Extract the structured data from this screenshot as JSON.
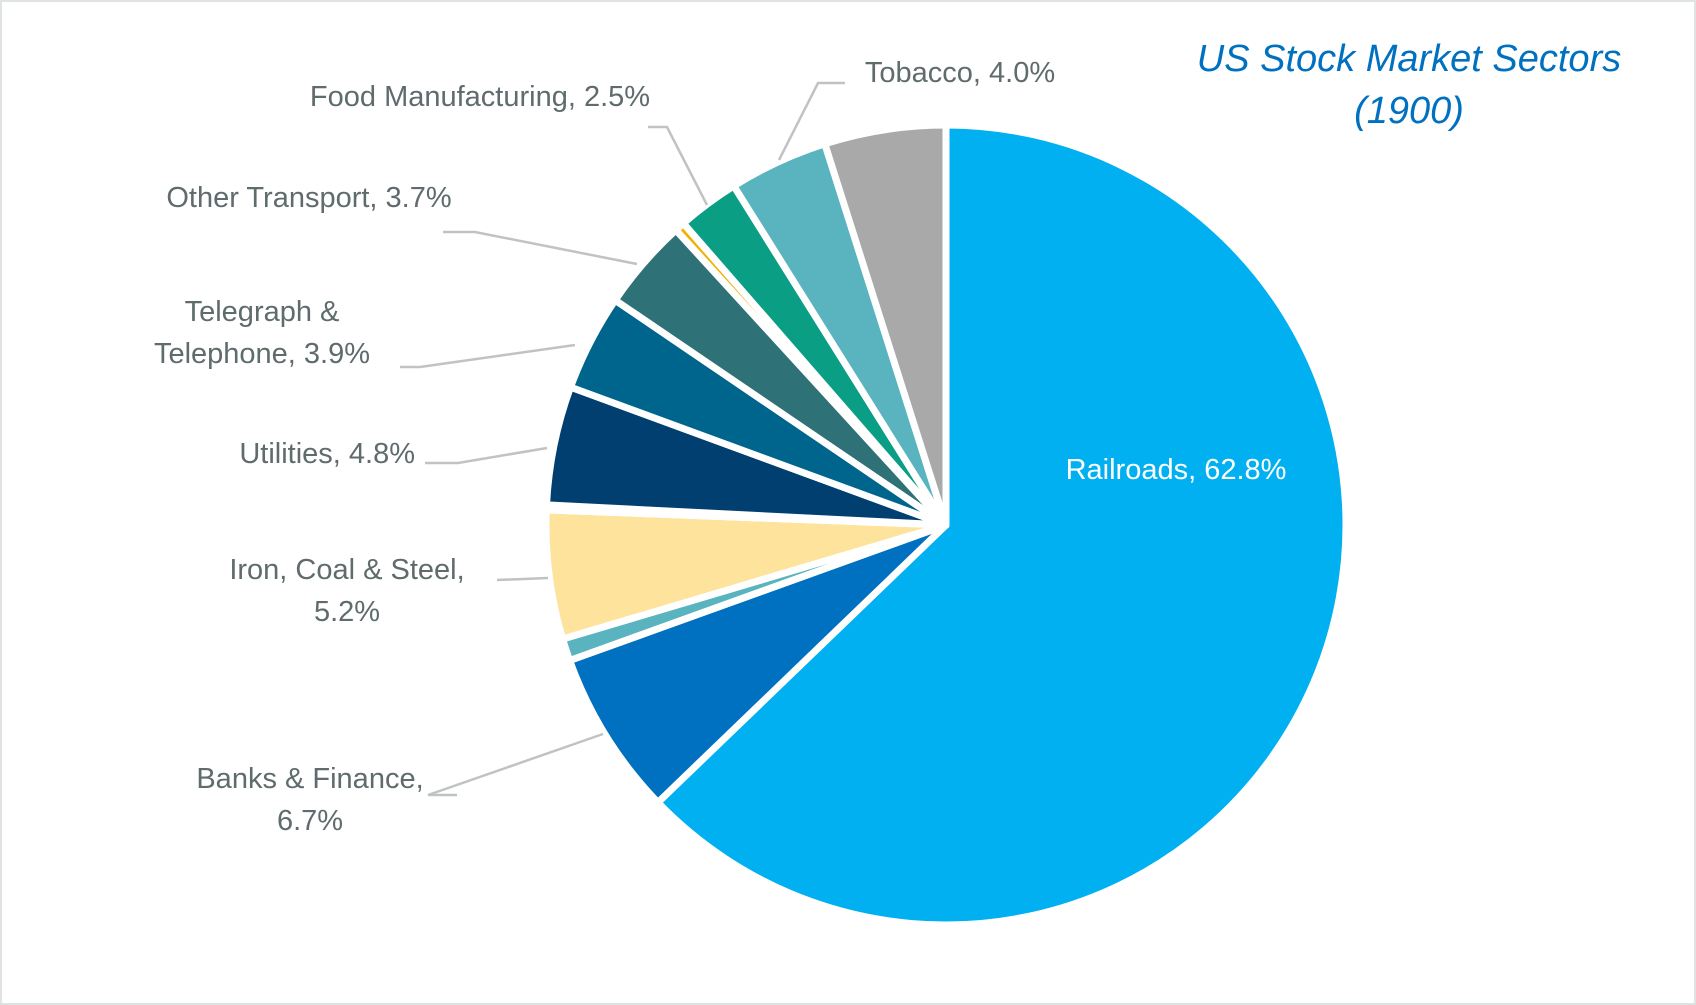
{
  "chart_data": {
    "type": "pie",
    "title_line1": "US Stock Market Sectors",
    "title_line2": "(1900)",
    "start_angle_deg": 0,
    "direction": "clockwise",
    "slices": [
      {
        "name": "Railroads",
        "value": 62.8,
        "label": "Railroads, 62.8%",
        "color": "#00b0f0",
        "labeled": true
      },
      {
        "name": "Banks & Finance",
        "value": 6.7,
        "label_lines": [
          "Banks & Finance,",
          "6.7%"
        ],
        "color": "#0070c0",
        "labeled": true
      },
      {
        "name": "Unlabeled (teal)",
        "value": 0.9,
        "color": "#5ab4c0",
        "labeled": false
      },
      {
        "name": "Iron, Coal & Steel",
        "value": 5.2,
        "label_lines": [
          "Iron, Coal & Steel,",
          "5.2%"
        ],
        "color": "#fde39b",
        "labeled": true
      },
      {
        "name": "Unlabeled (sliver)",
        "value": 0.2,
        "color": "#8ed8ea",
        "labeled": false
      },
      {
        "name": "Utilities",
        "value": 4.8,
        "label_lines": [
          "Utilities, 4.8%"
        ],
        "color": "#003f6f",
        "labeled": true
      },
      {
        "name": "Telegraph & Telephone",
        "value": 3.9,
        "label_lines": [
          "Telegraph &",
          "Telephone, 3.9%"
        ],
        "color": "#00658c",
        "labeled": true
      },
      {
        "name": "Other Transport",
        "value": 3.7,
        "label_lines": [
          "Other Transport, 3.7%"
        ],
        "color": "#2e7278",
        "labeled": true
      },
      {
        "name": "Unlabeled (yellow)",
        "value": 0.4,
        "color": "#f0b100",
        "labeled": false
      },
      {
        "name": "Food Manufacturing",
        "value": 2.5,
        "label_lines": [
          "Food Manufacturing, 2.5%"
        ],
        "color": "#0a9e84",
        "labeled": true
      },
      {
        "name": "Tobacco",
        "value": 4.0,
        "label_lines": [
          "Tobacco, 4.0%"
        ],
        "color": "#5ab4c0",
        "labeled": true
      },
      {
        "name": "Unlabeled (gray)",
        "value": 4.9,
        "color": "#a9a9a9",
        "labeled": false
      }
    ]
  }
}
